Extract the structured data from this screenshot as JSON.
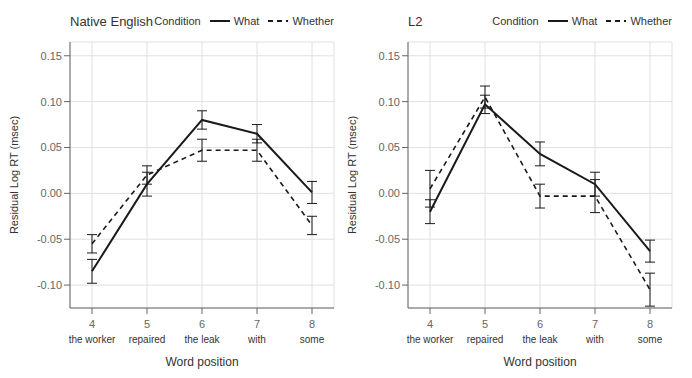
{
  "chart_data": [
    {
      "type": "line",
      "title": "Native English",
      "xlabel": "Word position",
      "ylabel": "Residual Log RT (msec)",
      "x": [
        4,
        5,
        6,
        7,
        8
      ],
      "xlim": [
        3.6,
        8.4
      ],
      "xticks": [
        4,
        5,
        6,
        7,
        8
      ],
      "ylim": [
        -0.125,
        0.165
      ],
      "yticks": [
        {
          "value": -0.1,
          "label": "-0.10"
        },
        -0.05,
        {
          "value": 0,
          "label": "0.00"
        },
        0.05,
        {
          "value": 0.1,
          "label": "0.10"
        },
        0.15
      ],
      "grid": true,
      "legend": "upper right",
      "legend_title": "Condition",
      "annotations": [
        {
          "x": 4,
          "text": "the worker"
        },
        {
          "x": 5,
          "text": "repaired"
        },
        {
          "x": 6,
          "text": "the leak"
        },
        {
          "x": 7,
          "text": "with"
        },
        {
          "x": 8,
          "text": "some"
        }
      ],
      "series": [
        {
          "name": "What",
          "color": "#1a1a1a",
          "line_style": "solid",
          "values": [
            -0.085,
            0.01,
            0.08,
            0.065,
            0.001
          ],
          "errors": [
            0.013,
            0.013,
            0.01,
            0.01,
            0.012
          ]
        },
        {
          "name": "Whether",
          "color": "#1a1a1a",
          "line_style": "dashed",
          "values": [
            -0.055,
            0.02,
            0.047,
            0.047,
            -0.035
          ],
          "errors": [
            0.01,
            0.01,
            0.012,
            0.012,
            0.01
          ]
        }
      ]
    },
    {
      "type": "line",
      "title": "L2",
      "xlabel": "Word position",
      "ylabel": "Residual Log RT (msec)",
      "x": [
        4,
        5,
        6,
        7,
        8
      ],
      "xlim": [
        3.6,
        8.4
      ],
      "xticks": [
        4,
        5,
        6,
        7,
        8
      ],
      "ylim": [
        -0.125,
        0.165
      ],
      "yticks": [
        {
          "value": -0.1,
          "label": "-0.10"
        },
        -0.05,
        {
          "value": 0,
          "label": "0.00"
        },
        0.05,
        {
          "value": 0.1,
          "label": "0.10"
        },
        0.15
      ],
      "grid": true,
      "legend": "upper right",
      "legend_title": "Condition",
      "annotations": [
        {
          "x": 4,
          "text": "the worker"
        },
        {
          "x": 5,
          "text": "repaired"
        },
        {
          "x": 6,
          "text": "the leak"
        },
        {
          "x": 7,
          "text": "with"
        },
        {
          "x": 8,
          "text": "some"
        }
      ],
      "series": [
        {
          "name": "What",
          "color": "#1a1a1a",
          "line_style": "solid",
          "values": [
            -0.02,
            0.097,
            0.043,
            0.01,
            -0.063
          ],
          "errors": [
            0.013,
            0.01,
            0.013,
            0.013,
            0.012
          ]
        },
        {
          "name": "Whether",
          "color": "#1a1a1a",
          "line_style": "dashed",
          "values": [
            0.005,
            0.105,
            -0.003,
            -0.003,
            -0.105
          ],
          "errors": [
            0.02,
            0.012,
            0.013,
            0.018,
            0.018
          ]
        }
      ]
    }
  ]
}
